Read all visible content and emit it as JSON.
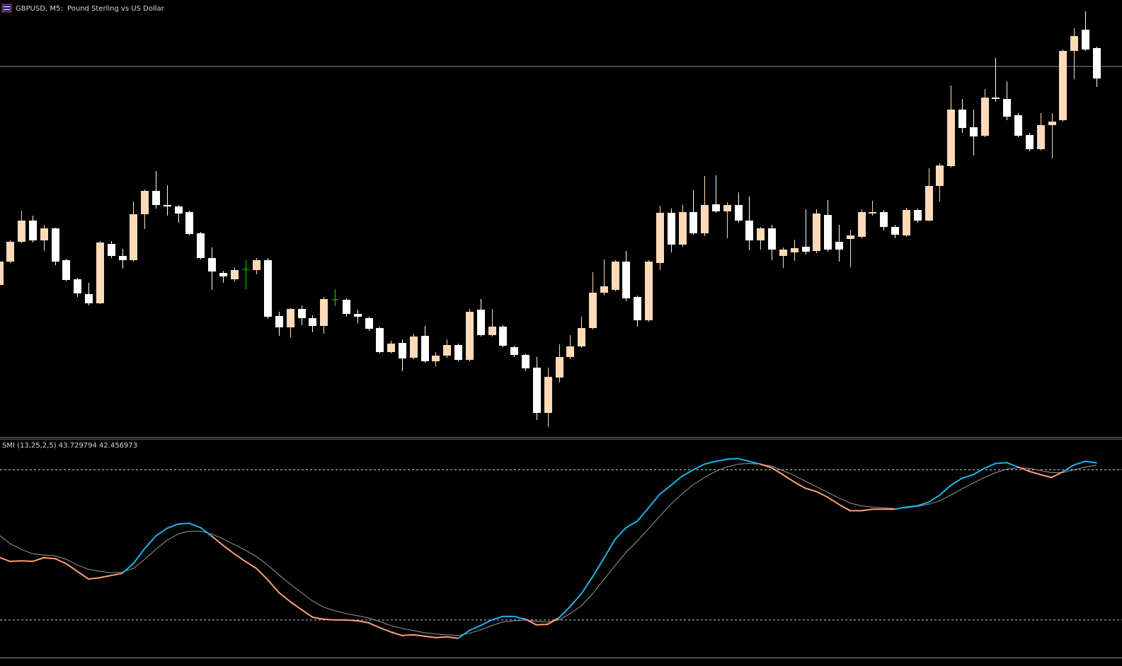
{
  "chart_data": [
    {
      "type": "candlestick",
      "title": "GBPUSD, M5:  Pound Sterling vs US Dollar",
      "open": [
        217,
        250,
        278,
        308,
        280,
        297,
        252,
        225,
        204,
        191,
        275,
        258,
        252,
        317,
        350,
        330,
        328,
        320,
        290,
        255,
        234,
        225,
        239,
        238,
        252,
        173,
        157,
        183,
        170,
        159,
        196,
        196,
        176,
        170,
        156,
        122,
        135,
        114,
        145,
        109,
        117,
        132,
        111,
        182,
        146,
        158,
        129,
        118,
        100,
        36,
        86,
        115,
        130,
        156,
        206,
        210,
        250,
        200,
        167,
        248,
        319,
        274,
        320,
        290,
        331,
        321,
        330,
        308,
        280,
        297,
        258,
        263,
        271,
        265,
        316,
        278,
        282,
        285,
        318,
        320,
        299,
        287,
        323,
        308,
        357,
        385,
        465,
        440,
        428,
        482,
        480,
        457,
        429,
        409,
        443,
        450,
        548,
        578,
        552
      ],
      "high": [
        252,
        280,
        322,
        315,
        302,
        298,
        254,
        227,
        220,
        279,
        279,
        268,
        335,
        352,
        378,
        358,
        330,
        322,
        292,
        270,
        237,
        242,
        252,
        255,
        255,
        179,
        184,
        188,
        174,
        200,
        211,
        198,
        182,
        172,
        158,
        138,
        140,
        148,
        159,
        122,
        140,
        134,
        183,
        197,
        183,
        160,
        131,
        120,
        115,
        100,
        133,
        146,
        172,
        235,
        253,
        252,
        265,
        202,
        252,
        329,
        325,
        330,
        351,
        371,
        372,
        334,
        348,
        342,
        299,
        302,
        270,
        281,
        324,
        324,
        337,
        302,
        295,
        324,
        336,
        323,
        302,
        326,
        325,
        382,
        389,
        499,
        480,
        465,
        494,
        538,
        505,
        460,
        432,
        460,
        460,
        550,
        580,
        604,
        554
      ],
      "low": [
        215,
        248,
        276,
        277,
        265,
        245,
        222,
        200,
        188,
        190,
        255,
        240,
        250,
        296,
        325,
        315,
        305,
        287,
        253,
        210,
        220,
        222,
        211,
        232,
        169,
        145,
        143,
        160,
        150,
        148,
        187,
        172,
        163,
        152,
        120,
        120,
        95,
        112,
        107,
        102,
        114,
        109,
        109,
        144,
        144,
        129,
        115,
        95,
        26,
        16,
        79,
        112,
        128,
        154,
        202,
        208,
        194,
        158,
        165,
        238,
        263,
        271,
        288,
        286,
        319,
        283,
        305,
        266,
        267,
        252,
        241,
        251,
        260,
        262,
        264,
        250,
        242,
        283,
        315,
        294,
        283,
        285,
        305,
        307,
        335,
        383,
        432,
        400,
        426,
        476,
        450,
        426,
        406,
        407,
        396,
        448,
        508,
        548,
        497
      ],
      "close": [
        250,
        278,
        308,
        280,
        297,
        250,
        224,
        205,
        191,
        277,
        258,
        252,
        317,
        350,
        330,
        328,
        318,
        289,
        255,
        236,
        229,
        238,
        239,
        252,
        172,
        157,
        183,
        170,
        159,
        197,
        196,
        176,
        172,
        155,
        122,
        134,
        113,
        144,
        109,
        117,
        132,
        111,
        179,
        146,
        158,
        131,
        118,
        99,
        36,
        87,
        115,
        130,
        156,
        206,
        215,
        250,
        198,
        167,
        250,
        319,
        274,
        320,
        290,
        330,
        321,
        330,
        308,
        280,
        297,
        267,
        267,
        269,
        264,
        318,
        267,
        267,
        287,
        320,
        320,
        299,
        288,
        323,
        308,
        357,
        386,
        465,
        439,
        427,
        482,
        480,
        455,
        428,
        409,
        443,
        448,
        548,
        569,
        550,
        509
      ],
      "ylim": [
        0,
        620
      ],
      "hline": 526,
      "hline_color": "#8a8a8a",
      "up_color": "#ffdab9",
      "down_color": "#ffffff",
      "doji_color": "#00e000"
    },
    {
      "type": "line",
      "title": "SMI (13,25,2,5) 43.729794 42.456973",
      "series": [
        {
          "values": [
            -6.6,
            -8.8,
            -8.5,
            -8.8,
            -6.9,
            -7.3,
            -10.0,
            -14.1,
            -18.2,
            -17.5,
            -16.3,
            -15.2,
            -10.0,
            -2.1,
            4.7,
            8.8,
            11.1,
            11.5,
            9.2,
            4.7,
            -0.2,
            -4.7,
            -8.8,
            -12.6,
            -18.6,
            -25.4,
            -30.2,
            -34.4,
            -38.5,
            -39.6,
            -40.0,
            -40.0,
            -40.4,
            -41.5,
            -44.1,
            -46.4,
            -48.3,
            -47.9,
            -48.6,
            -49.4,
            -49.0,
            -49.8,
            -45.6,
            -43.0,
            -40.0,
            -38.1,
            -38.1,
            -39.6,
            -42.6,
            -42.3,
            -38.9,
            -32.9,
            -26.1,
            -17.1,
            -7.3,
            2.8,
            9.2,
            12.6,
            19.7,
            26.9,
            31.7,
            36.6,
            40.0,
            43.0,
            44.5,
            45.6,
            46.0,
            44.5,
            43.0,
            41.1,
            37.4,
            33.6,
            30.2,
            28.4,
            25.4,
            21.6,
            18.2,
            18.2,
            19.0,
            19.0,
            19.0,
            20.1,
            20.8,
            22.7,
            26.5,
            31.7,
            35.5,
            37.4,
            40.8,
            43.4,
            43.8,
            41.5,
            39.2,
            37.4,
            35.9,
            38.9,
            42.6,
            44.5,
            43.729794
          ],
          "up_color": "#1eb4f0",
          "down_color": "#ff9f74"
        },
        {
          "values": [
            5.4,
            0.6,
            -2.4,
            -4.7,
            -5.4,
            -5.8,
            -7.7,
            -10.7,
            -13.0,
            -14.1,
            -14.8,
            -14.5,
            -12.6,
            -7.7,
            -2.4,
            2.4,
            5.8,
            7.3,
            7.3,
            5.8,
            3.2,
            0.2,
            -2.8,
            -6.2,
            -10.7,
            -16.0,
            -20.8,
            -25.4,
            -29.9,
            -33.2,
            -35.1,
            -36.6,
            -37.7,
            -38.9,
            -40.8,
            -43.0,
            -44.5,
            -45.6,
            -46.8,
            -47.5,
            -47.9,
            -48.3,
            -47.1,
            -45.3,
            -43.0,
            -41.1,
            -40.4,
            -40.0,
            -40.8,
            -41.1,
            -40.0,
            -36.6,
            -32.5,
            -26.1,
            -18.6,
            -11.1,
            -3.9,
            2.1,
            8.5,
            15.2,
            21.6,
            27.2,
            32.1,
            35.9,
            39.2,
            41.5,
            43.0,
            43.4,
            43.0,
            41.9,
            39.6,
            37.0,
            34.0,
            31.0,
            28.0,
            25.0,
            22.3,
            20.8,
            20.1,
            19.7,
            19.3,
            19.7,
            20.5,
            21.6,
            23.5,
            26.5,
            29.9,
            32.9,
            35.9,
            38.5,
            40.4,
            41.1,
            40.8,
            39.6,
            38.5,
            38.5,
            40.0,
            41.5,
            42.456973
          ],
          "color": "#9a9a9a"
        }
      ],
      "ylim": [
        -60,
        56
      ],
      "levels": [
        40,
        -40
      ],
      "level_color": "#d0d0d0"
    }
  ]
}
